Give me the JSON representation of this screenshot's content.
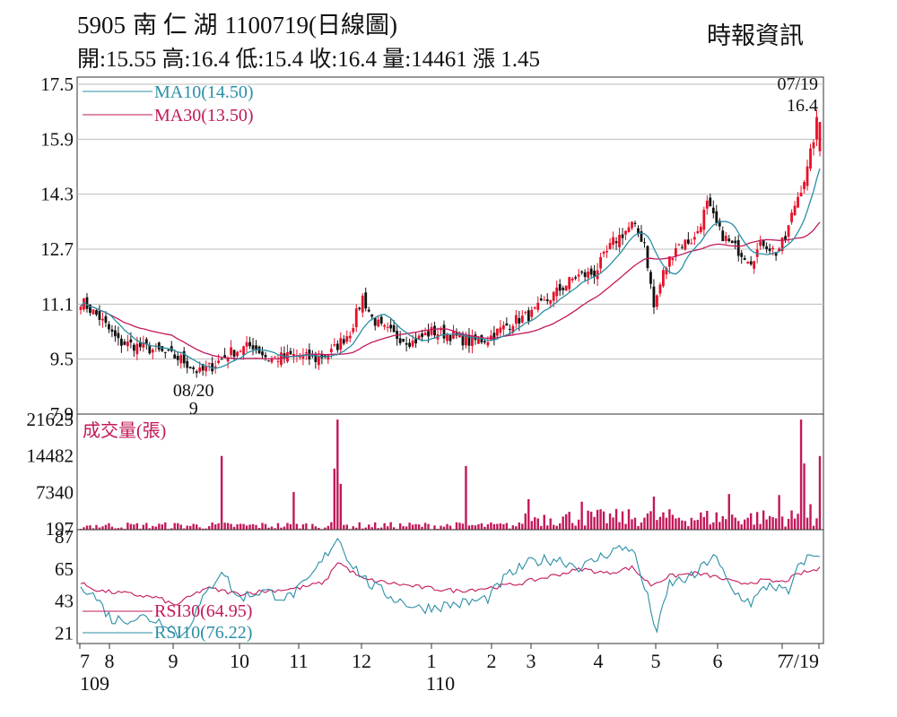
{
  "header": {
    "code": "5905",
    "name": "南 仁 湖",
    "chart_title": "1100719(日線圖)",
    "source": "時報資訊",
    "ohlc": "開:15.55 高:16.4 低:15.4 收:16.4 量:14461 漲 1.45"
  },
  "colors": {
    "up": "#e8102a",
    "down": "#111111",
    "ma10": "#2a8fa6",
    "ma30": "#c2185b",
    "volume": "#c2185b",
    "rsi10": "#2a8fa6",
    "rsi30": "#c2185b",
    "grid": "#bdbdbd"
  },
  "chart_data": [
    {
      "type": "line",
      "subtype": "candlestick",
      "y_ticks": [
        "17.5",
        "15.9",
        "14.3",
        "12.7",
        "11.1",
        "9.5",
        "7.9"
      ],
      "ylim": [
        7.9,
        17.5
      ],
      "x_ticks": [
        {
          "label": "7",
          "sublabel": "109"
        },
        {
          "label": "8"
        },
        {
          "label": "9"
        },
        {
          "label": "10"
        },
        {
          "label": "11"
        },
        {
          "label": "12"
        },
        {
          "label": "1",
          "sublabel": "110"
        },
        {
          "label": "2"
        },
        {
          "label": "3"
        },
        {
          "label": "4"
        },
        {
          "label": "5"
        },
        {
          "label": "6"
        },
        {
          "label": "7"
        },
        {
          "label": "7/19"
        }
      ],
      "grid": "horizontal",
      "legend": [
        {
          "name": "MA10(14.50)",
          "color": "#2a8fa6"
        },
        {
          "name": "MA30(13.50)",
          "color": "#c2185b"
        }
      ],
      "annotations": [
        {
          "text": "08/20",
          "text2": "9"
        },
        {
          "text": "07/19",
          "text2": "16.4"
        }
      ],
      "close_anchors": [
        [
          0,
          11.2
        ],
        [
          6,
          10.7
        ],
        [
          12,
          10.0
        ],
        [
          22,
          9.8
        ],
        [
          32,
          9.5
        ],
        [
          38,
          9.1
        ],
        [
          42,
          9.3
        ],
        [
          48,
          9.7
        ],
        [
          55,
          9.9
        ],
        [
          60,
          9.5
        ],
        [
          68,
          9.6
        ],
        [
          75,
          9.5
        ],
        [
          80,
          9.7
        ],
        [
          86,
          10.3
        ],
        [
          90,
          11.3
        ],
        [
          93,
          10.7
        ],
        [
          96,
          10.4
        ],
        [
          100,
          10.2
        ],
        [
          106,
          10.0
        ],
        [
          112,
          10.3
        ],
        [
          118,
          10.2
        ],
        [
          124,
          10.0
        ],
        [
          130,
          10.1
        ],
        [
          138,
          10.6
        ],
        [
          144,
          10.8
        ],
        [
          150,
          11.3
        ],
        [
          158,
          11.9
        ],
        [
          164,
          12.0
        ],
        [
          170,
          12.9
        ],
        [
          176,
          13.4
        ],
        [
          180,
          12.9
        ],
        [
          183,
          11.0
        ],
        [
          186,
          12.0
        ],
        [
          190,
          12.8
        ],
        [
          196,
          13.0
        ],
        [
          200,
          14.0
        ],
        [
          204,
          13.2
        ],
        [
          208,
          12.8
        ],
        [
          214,
          12.4
        ],
        [
          218,
          12.9
        ],
        [
          222,
          12.6
        ],
        [
          225,
          13.0
        ],
        [
          228,
          14.0
        ],
        [
          232,
          15.0
        ],
        [
          235,
          16.4
        ]
      ],
      "ma10_current": 14.5,
      "ma30_current": 13.5,
      "last_candle": {
        "open": 15.55,
        "high": 16.4,
        "low": 15.4,
        "close": 16.4
      }
    },
    {
      "type": "bar",
      "title": "成交量(張)",
      "y_ticks": [
        "21625",
        "14482",
        "7340",
        "197"
      ],
      "ylim": [
        0,
        22000
      ],
      "spikes": [
        [
          45,
          14482
        ],
        [
          68,
          7400
        ],
        [
          82,
          21625
        ],
        [
          81,
          12000
        ],
        [
          83,
          9000
        ],
        [
          123,
          12500
        ],
        [
          143,
          6000
        ],
        [
          160,
          5500
        ],
        [
          183,
          6500
        ],
        [
          207,
          7000
        ],
        [
          223,
          6800
        ],
        [
          230,
          21625
        ],
        [
          231,
          13000
        ],
        [
          233,
          5000
        ],
        [
          236,
          14461
        ]
      ]
    },
    {
      "type": "line",
      "title": "RSI",
      "y_ticks": [
        "87",
        "65",
        "43",
        "21"
      ],
      "ylim": [
        14,
        90
      ],
      "series": [
        {
          "name": "RSI30(64.95)",
          "color": "#c2185b",
          "anchors": [
            [
              0,
              55
            ],
            [
              6,
              50
            ],
            [
              15,
              48
            ],
            [
              25,
              45
            ],
            [
              30,
              40
            ],
            [
              40,
              52
            ],
            [
              50,
              48
            ],
            [
              60,
              50
            ],
            [
              70,
              52
            ],
            [
              78,
              56
            ],
            [
              82,
              70
            ],
            [
              90,
              58
            ],
            [
              100,
              55
            ],
            [
              110,
              52
            ],
            [
              120,
              50
            ],
            [
              130,
              52
            ],
            [
              140,
              55
            ],
            [
              150,
              60
            ],
            [
              160,
              65
            ],
            [
              168,
              62
            ],
            [
              176,
              66
            ],
            [
              182,
              54
            ],
            [
              188,
              60
            ],
            [
              196,
              62
            ],
            [
              202,
              60
            ],
            [
              210,
              55
            ],
            [
              218,
              57
            ],
            [
              224,
              56
            ],
            [
              230,
              62
            ],
            [
              236,
              64.95
            ]
          ]
        },
        {
          "name": "RSI10(76.22)",
          "color": "#2a8fa6",
          "anchors": [
            [
              0,
              55
            ],
            [
              5,
              45
            ],
            [
              10,
              30
            ],
            [
              20,
              32
            ],
            [
              28,
              28
            ],
            [
              32,
              18
            ],
            [
              38,
              40
            ],
            [
              45,
              65
            ],
            [
              50,
              45
            ],
            [
              58,
              50
            ],
            [
              66,
              45
            ],
            [
              72,
              55
            ],
            [
              77,
              70
            ],
            [
              82,
              87
            ],
            [
              86,
              70
            ],
            [
              92,
              55
            ],
            [
              100,
              45
            ],
            [
              108,
              38
            ],
            [
              116,
              40
            ],
            [
              124,
              42
            ],
            [
              130,
              45
            ],
            [
              136,
              60
            ],
            [
              144,
              70
            ],
            [
              152,
              72
            ],
            [
              160,
              66
            ],
            [
              170,
              78
            ],
            [
              176,
              80
            ],
            [
              181,
              45
            ],
            [
              184,
              22
            ],
            [
              188,
              55
            ],
            [
              196,
              60
            ],
            [
              202,
              75
            ],
            [
              208,
              50
            ],
            [
              214,
              42
            ],
            [
              220,
              55
            ],
            [
              226,
              48
            ],
            [
              230,
              70
            ],
            [
              236,
              76.22
            ]
          ]
        }
      ]
    }
  ]
}
